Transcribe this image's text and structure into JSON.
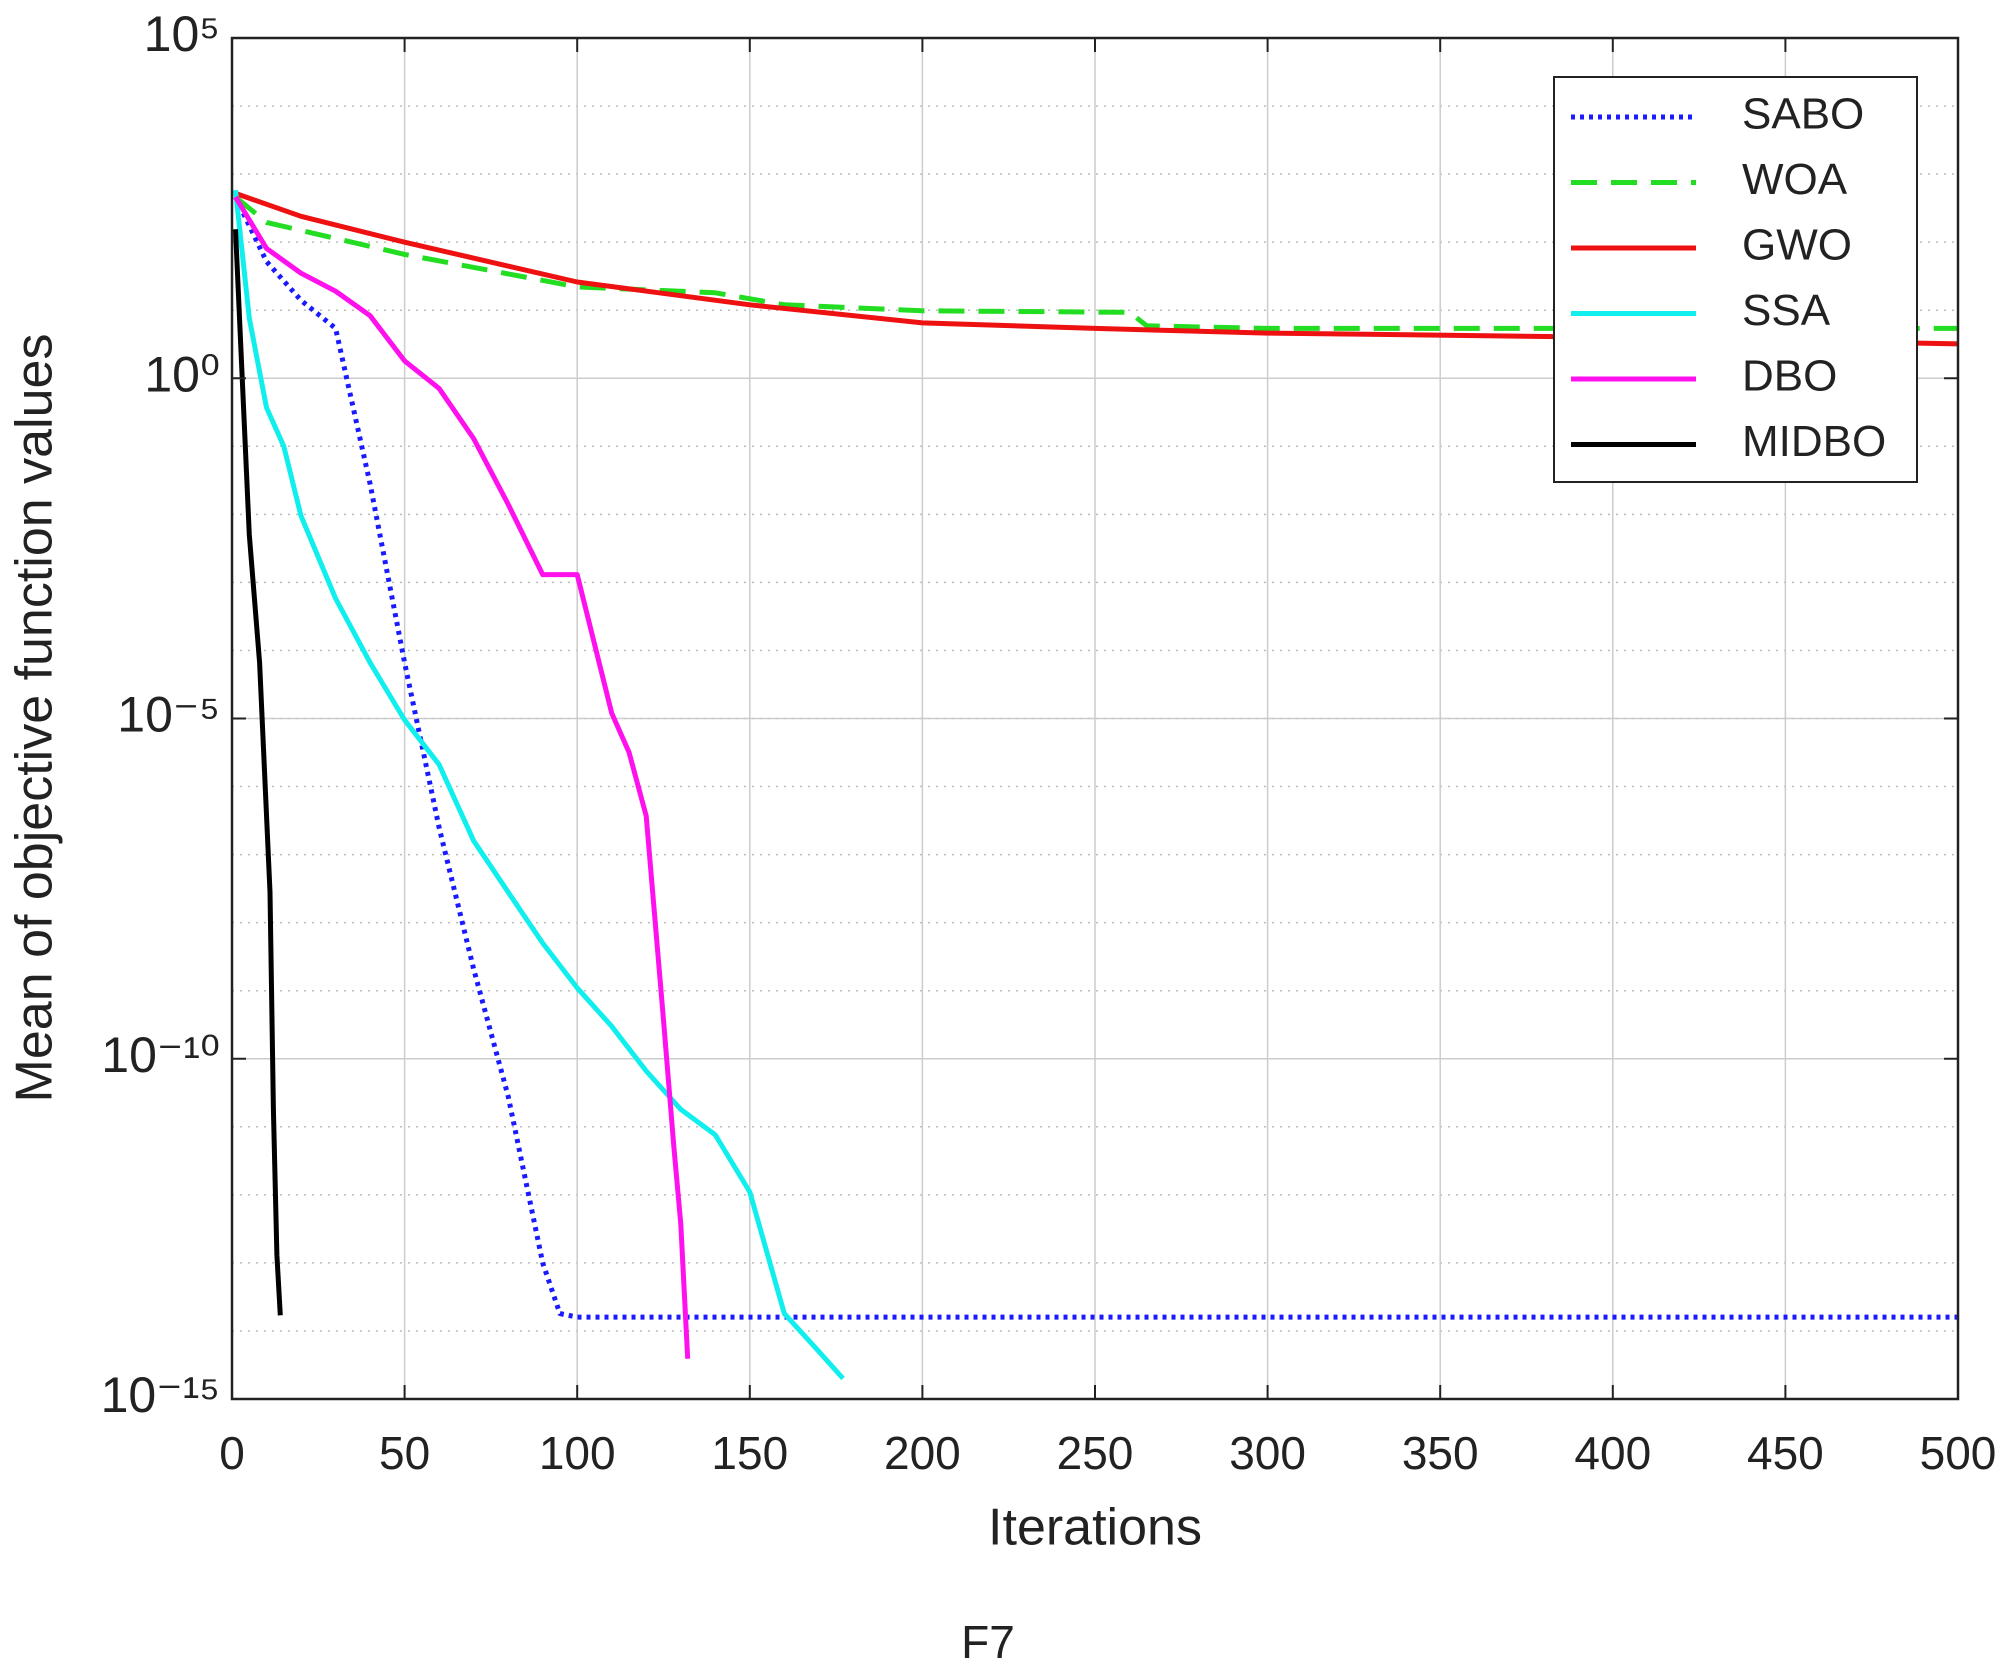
{
  "chart_data": {
    "type": "line",
    "caption": "F7",
    "xlabel": "Iterations",
    "ylabel": "Mean of objective function values",
    "ylog": true,
    "grid": true,
    "minor_grid": true,
    "legend": "upper right",
    "xlim": [
      0,
      500
    ],
    "xticks": [
      0,
      50,
      100,
      150,
      200,
      250,
      300,
      350,
      400,
      450,
      500
    ],
    "ylim": [
      1e-15,
      100000
    ],
    "yticks": [
      {
        "value": 1e-15,
        "label": "10⁻¹⁵"
      },
      {
        "value": 1e-10,
        "label": "10⁻¹⁰"
      },
      {
        "value": 1e-05,
        "label": "10⁻⁵"
      },
      {
        "value": 1,
        "label": "10⁰"
      },
      {
        "value": 100000,
        "label": "10⁵"
      }
    ],
    "series": [
      {
        "name": "SABO",
        "color": "#1a1aff",
        "dash": "dotted",
        "x": [
          1,
          10,
          20,
          30,
          40,
          50,
          60,
          70,
          80,
          90,
          95,
          100,
          500
        ],
        "values": [
          460,
          52,
          14,
          5.4,
          0.028,
          6.6e-05,
          2.5e-07,
          2.1e-09,
          2.8e-11,
          1e-13,
          1.8e-14,
          1.6e-14,
          1.6e-14
        ]
      },
      {
        "name": "WOA",
        "color": "#22dd22",
        "dash": "dashed",
        "x": [
          1,
          10,
          50,
          100,
          140,
          160,
          200,
          260,
          265,
          300,
          500
        ],
        "values": [
          460,
          195,
          66,
          22,
          18,
          12,
          9.8,
          9.3,
          5.9,
          5.4,
          5.4
        ]
      },
      {
        "name": "GWO",
        "color": "#ee1111",
        "dash": "solid",
        "x": [
          1,
          20,
          50,
          100,
          150,
          200,
          250,
          300,
          400,
          500
        ],
        "values": [
          520,
          240,
          100,
          26,
          12,
          6.5,
          5.4,
          4.6,
          4,
          3.2
        ]
      },
      {
        "name": "SSA",
        "color": "#11eeee",
        "dash": "solid",
        "x": [
          1,
          5,
          10,
          15,
          20,
          30,
          40,
          50,
          60,
          70,
          80,
          90,
          100,
          110,
          120,
          130,
          140,
          150,
          160,
          170,
          177
        ],
        "values": [
          580,
          7.6,
          0.37,
          0.1,
          0.0095,
          0.00058,
          6.6e-05,
          9.5e-06,
          2.1e-06,
          1.6e-07,
          2.8e-08,
          5e-09,
          1.1e-09,
          3e-10,
          6.6e-11,
          1.8e-11,
          7.6e-12,
          1.1e-12,
          1.8e-14,
          5e-15,
          2e-15
        ]
      },
      {
        "name": "DBO",
        "color": "#ff11ee",
        "dash": "solid",
        "x": [
          1,
          10,
          20,
          30,
          40,
          50,
          60,
          70,
          80,
          90,
          100,
          110,
          115,
          120,
          125,
          128,
          130,
          132
        ],
        "values": [
          460,
          81,
          35,
          19,
          8.3,
          1.8,
          0.71,
          0.13,
          0.014,
          0.0013,
          0.0013,
          1.2e-05,
          3.2e-06,
          3.7e-07,
          3.7e-10,
          5e-12,
          3.7e-13,
          3.9e-15
        ]
      },
      {
        "name": "MIDBO",
        "color": "#000000",
        "dash": "solid",
        "x": [
          1,
          5,
          8,
          11,
          12,
          13,
          14
        ],
        "values": [
          155,
          0.005,
          6.6e-05,
          2.8e-08,
          1.8e-11,
          1.3e-13,
          1.7e-14
        ]
      }
    ]
  }
}
